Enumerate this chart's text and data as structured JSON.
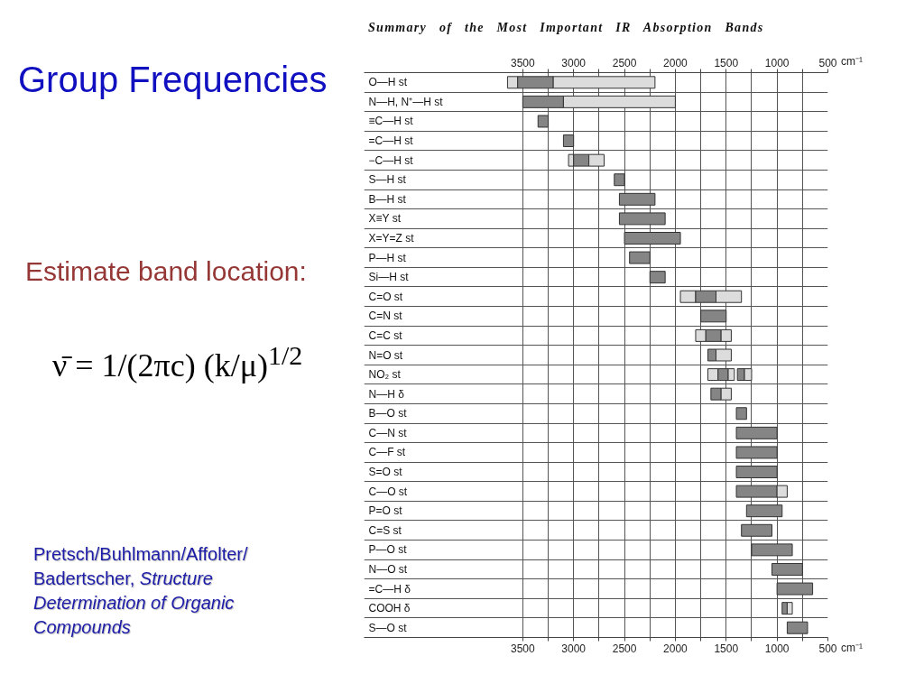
{
  "chart_data": {
    "type": "bar",
    "orientation": "horizontal",
    "title": "Group Frequencies",
    "subtitle": "Summary of the Most Important IR Absorption Bands",
    "categories": [
      "O—H st",
      "N—H, N⁺—H st",
      "≡C—H st",
      "=C—H st",
      "−C—H st",
      "S—H st",
      "B—H st",
      "X≡Y st",
      "X=Y=Z st",
      "P—H st",
      "Si—H st",
      "C=O st",
      "C=N st",
      "C=C st",
      "N=O st",
      "NO₂ st",
      "N—H δ",
      "B—O st",
      "C—N st",
      "C—F st",
      "S=O st",
      "C—O st",
      "P=O st",
      "C=S st",
      "P—O st",
      "N—O st",
      "=C—H δ",
      "COOH δ",
      "S—O st"
    ],
    "series": [
      {
        "color": "#dcdcdc",
        "base": [
          3550,
          null,
          null,
          null,
          3000,
          null,
          null,
          null,
          null,
          null,
          null,
          1800,
          null,
          1700,
          null,
          1580,
          null,
          null,
          null,
          null,
          null,
          null,
          null,
          null,
          null,
          null,
          null,
          null,
          null
        ],
        "values": [
          100,
          null,
          null,
          null,
          50,
          null,
          null,
          null,
          null,
          null,
          null,
          150,
          null,
          100,
          null,
          100,
          null,
          null,
          null,
          null,
          null,
          null,
          null,
          null,
          null,
          null,
          null,
          null,
          null
        ]
      },
      {
        "color": "#858585",
        "base": [
          3200,
          3100,
          3250,
          3000,
          2850,
          2500,
          2200,
          2100,
          1950,
          2250,
          2100,
          1600,
          1500,
          1550,
          1600,
          1480,
          1550,
          1300,
          1000,
          1000,
          1000,
          1000,
          950,
          1050,
          850,
          750,
          650,
          900,
          700
        ],
        "values": [
          350,
          400,
          100,
          100,
          150,
          100,
          350,
          450,
          550,
          200,
          150,
          200,
          250,
          150,
          80,
          100,
          100,
          100,
          400,
          400,
          400,
          400,
          350,
          300,
          400,
          300,
          350,
          50,
          200
        ]
      },
      {
        "color": "#dcdcdc",
        "base": [
          2200,
          2000,
          null,
          null,
          2700,
          null,
          null,
          null,
          null,
          null,
          null,
          1350,
          null,
          1450,
          1450,
          1420,
          1450,
          null,
          null,
          null,
          null,
          900,
          null,
          null,
          null,
          null,
          null,
          850,
          null
        ],
        "values": [
          1000,
          1100,
          null,
          null,
          150,
          null,
          null,
          null,
          null,
          null,
          null,
          250,
          null,
          100,
          150,
          60,
          100,
          null,
          null,
          null,
          null,
          100,
          null,
          null,
          null,
          null,
          null,
          50,
          null
        ]
      },
      {
        "color": "#858585",
        "base": [
          null,
          null,
          null,
          null,
          null,
          null,
          null,
          null,
          null,
          null,
          null,
          null,
          null,
          null,
          null,
          1320,
          null,
          null,
          null,
          null,
          null,
          null,
          null,
          null,
          null,
          null,
          null,
          null,
          null
        ],
        "values": [
          null,
          null,
          null,
          null,
          null,
          null,
          null,
          null,
          null,
          null,
          null,
          null,
          null,
          null,
          null,
          70,
          null,
          null,
          null,
          null,
          null,
          null,
          null,
          null,
          null,
          null,
          null,
          null,
          null
        ]
      },
      {
        "color": "#dcdcdc",
        "base": [
          null,
          null,
          null,
          null,
          null,
          null,
          null,
          null,
          null,
          null,
          null,
          null,
          null,
          null,
          null,
          1250,
          null,
          null,
          null,
          null,
          null,
          null,
          null,
          null,
          null,
          null,
          null,
          null,
          null
        ],
        "values": [
          null,
          null,
          null,
          null,
          null,
          null,
          null,
          null,
          null,
          null,
          null,
          null,
          null,
          null,
          null,
          70,
          null,
          null,
          null,
          null,
          null,
          null,
          null,
          null,
          null,
          null,
          null,
          null,
          null
        ]
      }
    ],
    "xlim": [
      5060,
      500
    ],
    "xticks": [
      3500,
      {
        "value": 3250,
        "label": null
      },
      3000,
      {
        "value": 2750,
        "label": null
      },
      2500,
      {
        "value": 2250,
        "label": null
      },
      2000,
      {
        "value": 1750,
        "label": null
      },
      1500,
      {
        "value": 1250,
        "label": null
      },
      1000,
      {
        "value": 750,
        "label": null
      },
      500
    ],
    "x2lim": [
      5060,
      500
    ],
    "x2ticks": [
      3500,
      {
        "value": 3250,
        "label": null
      },
      3000,
      {
        "value": 2750,
        "label": null
      },
      2500,
      {
        "value": 2250,
        "label": null
      },
      2000,
      {
        "value": 1750,
        "label": null
      },
      1500,
      {
        "value": 1250,
        "label": null
      },
      1000,
      {
        "value": 750,
        "label": null
      },
      500
    ],
    "xlabel": "cm⁻¹",
    "x2label": "cm⁻¹",
    "grid": true,
    "annotations": [
      "Estimate band location:",
      "ν̄ = 1/(2πc) (k/μ)$^{1/2}$",
      "Pretsch/Buhlmann/Affolter/Badertscher, Structure Determination of Organic Compounds"
    ]
  }
}
